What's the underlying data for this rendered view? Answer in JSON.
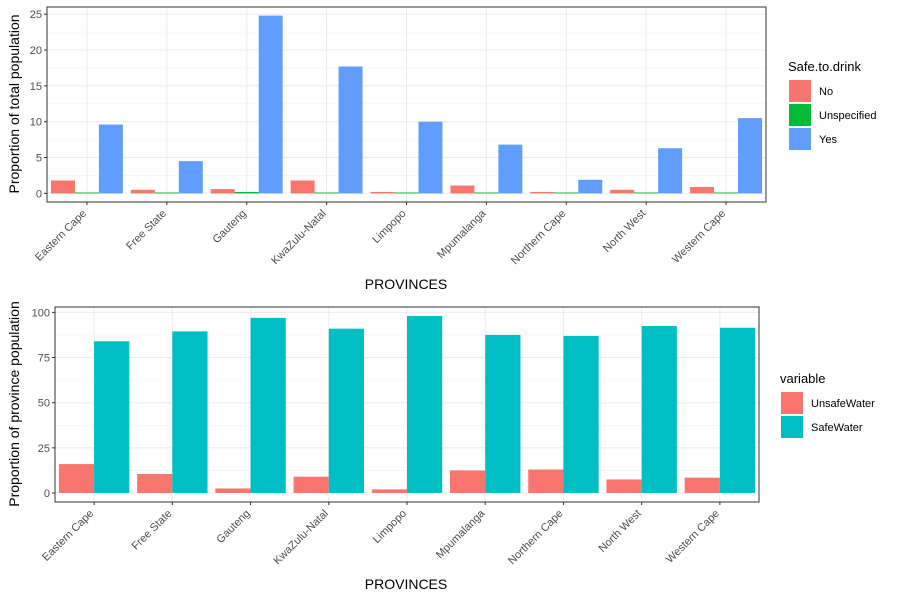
{
  "chart_data": [
    {
      "type": "bar",
      "categories": [
        "Eastern Cape",
        "Free State",
        "Gauteng",
        "KwaZulu-Natal",
        "Limpopo",
        "Mpumalanga",
        "Northern Cape",
        "North West",
        "Western Cape"
      ],
      "series": [
        {
          "name": "No",
          "color": "#F8766D",
          "values": [
            1.8,
            0.5,
            0.6,
            1.8,
            0.2,
            1.1,
            0.2,
            0.5,
            0.9
          ]
        },
        {
          "name": "Unspecified",
          "color": "#00BA38",
          "values": [
            0.0,
            0.0,
            0.2,
            0.0,
            0.0,
            0.0,
            0.0,
            0.0,
            0.0
          ]
        },
        {
          "name": "Yes",
          "color": "#619CFF",
          "values": [
            9.6,
            4.5,
            24.8,
            17.7,
            10.0,
            6.8,
            1.9,
            6.3,
            10.5
          ]
        }
      ],
      "xlabel": "PROVINCES",
      "ylabel": "Proportion of total population",
      "legend_title": "Safe.to.drink",
      "yticks": [
        0,
        5,
        10,
        15,
        20,
        25
      ],
      "ylim": [
        -1.2,
        26
      ],
      "grid": true,
      "legend_position": "right"
    },
    {
      "type": "bar",
      "categories": [
        "Eastern Cape",
        "Free State",
        "Gauteng",
        "KwaZulu-Natal",
        "Limpopo",
        "Mpumalanga",
        "Northern Cape",
        "North West",
        "Western Cape"
      ],
      "series": [
        {
          "name": "UnsafeWater",
          "color": "#F8766D",
          "values": [
            16,
            10.5,
            2.5,
            9,
            2,
            12.5,
            13,
            7.5,
            8.5
          ]
        },
        {
          "name": "SafeWater",
          "color": "#00BFC4",
          "values": [
            84,
            89.5,
            97,
            91,
            98,
            87.5,
            87,
            92.5,
            91.5
          ]
        }
      ],
      "xlabel": "PROVINCES",
      "ylabel": "Proportion of province population",
      "legend_title": "variable",
      "yticks": [
        0,
        25,
        50,
        75,
        100
      ],
      "ylim": [
        -5,
        103
      ],
      "grid": true,
      "legend_position": "right"
    }
  ]
}
